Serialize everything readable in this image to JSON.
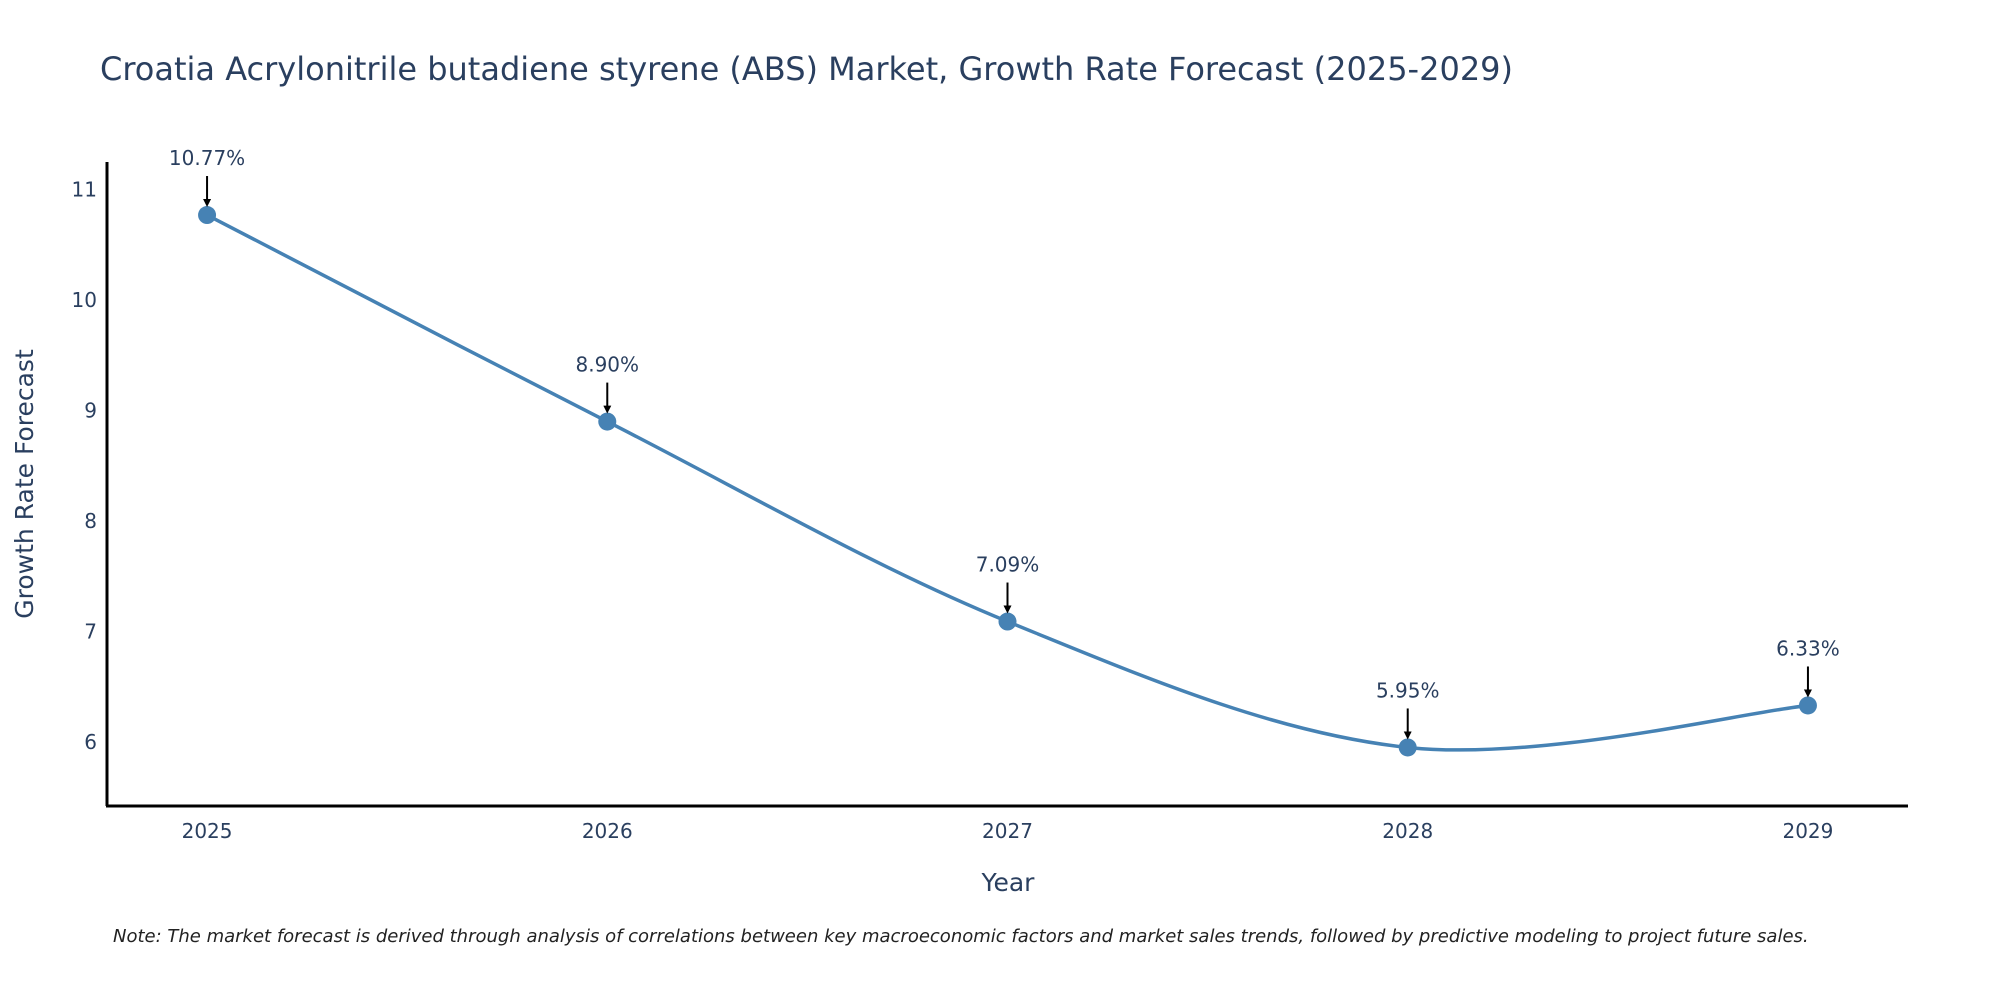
{
  "chart_data": {
    "type": "line",
    "title": "Croatia Acrylonitrile butadiene styrene (ABS) Market, Growth Rate Forecast (2025-2029)",
    "xlabel": "Year",
    "ylabel": "Growth Rate Forecast",
    "categories": [
      "2025",
      "2026",
      "2027",
      "2028",
      "2029"
    ],
    "x": [
      2025,
      2026,
      2027,
      2028,
      2029
    ],
    "values": [
      10.77,
      8.9,
      7.09,
      5.95,
      6.33
    ],
    "data_labels": [
      "10.77%",
      "8.90%",
      "7.09%",
      "5.95%",
      "6.33%"
    ],
    "y_ticks": [
      6,
      7,
      8,
      9,
      10,
      11
    ],
    "ylim": [
      5.42,
      11.25
    ],
    "xlim": [
      2024.75,
      2029.25
    ],
    "grid": false,
    "line_shape": "smooth",
    "colors": {
      "line": "#4682b4",
      "marker": "#4682b4",
      "axis": "#000000",
      "text": "#2a3f5f",
      "arrow": "#000000"
    }
  },
  "note": "Note: The market forecast is derived through analysis of correlations between key macroeconomic factors and market sales trends, followed by predictive modeling to project future sales."
}
